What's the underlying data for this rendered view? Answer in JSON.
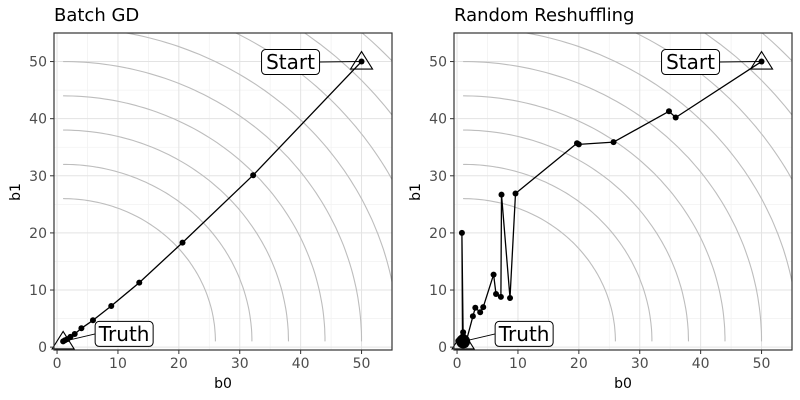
{
  "chart_data": [
    {
      "type": "line",
      "title": "Batch GD",
      "xlabel": "b0",
      "ylabel": "b1",
      "xlim": [
        -0.5,
        55
      ],
      "ylim": [
        -0.5,
        55
      ],
      "xticks": [
        0,
        10,
        20,
        30,
        40,
        50
      ],
      "yticks": [
        0,
        10,
        20,
        30,
        40,
        50
      ],
      "grid": true,
      "contour_radii": [
        25,
        31,
        37,
        43,
        49,
        55,
        61,
        67,
        73,
        79
      ],
      "start": {
        "label": "Start",
        "x": 50,
        "y": 50
      },
      "truth": {
        "label": "Truth",
        "x": 1,
        "y": 1
      },
      "path": [
        {
          "x": 50,
          "y": 50
        },
        {
          "x": 32.2,
          "y": 30.1
        },
        {
          "x": 20.6,
          "y": 18.3
        },
        {
          "x": 13.5,
          "y": 11.3
        },
        {
          "x": 8.9,
          "y": 7.2
        },
        {
          "x": 5.9,
          "y": 4.7
        },
        {
          "x": 4.0,
          "y": 3.3
        },
        {
          "x": 2.9,
          "y": 2.3
        },
        {
          "x": 2.2,
          "y": 1.8
        },
        {
          "x": 1.7,
          "y": 1.4
        },
        {
          "x": 1.3,
          "y": 1.2
        },
        {
          "x": 1.0,
          "y": 1.0
        }
      ]
    },
    {
      "type": "line",
      "title": "Random Reshuffling",
      "xlabel": "b0",
      "ylabel": "b1",
      "xlim": [
        -0.5,
        55
      ],
      "ylim": [
        -0.5,
        55
      ],
      "xticks": [
        0,
        10,
        20,
        30,
        40,
        50
      ],
      "yticks": [
        0,
        10,
        20,
        30,
        40,
        50
      ],
      "grid": true,
      "contour_radii": [
        25,
        31,
        37,
        43,
        49,
        55,
        61,
        67,
        73,
        79
      ],
      "start": {
        "label": "Start",
        "x": 50,
        "y": 50
      },
      "truth": {
        "label": "Truth",
        "x": 1,
        "y": 1
      },
      "path": [
        {
          "x": 50,
          "y": 50
        },
        {
          "x": 35.9,
          "y": 40.2
        },
        {
          "x": 34.8,
          "y": 41.3
        },
        {
          "x": 25.7,
          "y": 35.9
        },
        {
          "x": 20.0,
          "y": 35.5
        },
        {
          "x": 19.7,
          "y": 35.7
        },
        {
          "x": 9.6,
          "y": 26.9
        },
        {
          "x": 8.7,
          "y": 8.6
        },
        {
          "x": 7.3,
          "y": 26.7
        },
        {
          "x": 7.2,
          "y": 8.8
        },
        {
          "x": 6.4,
          "y": 9.3
        },
        {
          "x": 6.0,
          "y": 12.7
        },
        {
          "x": 4.3,
          "y": 7.0
        },
        {
          "x": 3.8,
          "y": 6.1
        },
        {
          "x": 3.0,
          "y": 6.9
        },
        {
          "x": 2.6,
          "y": 5.4
        },
        {
          "x": 1.5,
          "y": 1.0
        },
        {
          "x": 1.0,
          "y": 2.6
        },
        {
          "x": 0.8,
          "y": 20.0
        },
        {
          "x": 0.9,
          "y": 1.8
        },
        {
          "x": 0.5,
          "y": 0.8
        },
        {
          "x": 1.4,
          "y": 0.4
        },
        {
          "x": 1.0,
          "y": 1.3
        },
        {
          "x": 0.2,
          "y": 1.1
        },
        {
          "x": 1.6,
          "y": 0.9
        },
        {
          "x": 1.2,
          "y": 0.5
        },
        {
          "x": 0.6,
          "y": 1.2
        },
        {
          "x": 1.1,
          "y": 0.8
        }
      ]
    }
  ]
}
